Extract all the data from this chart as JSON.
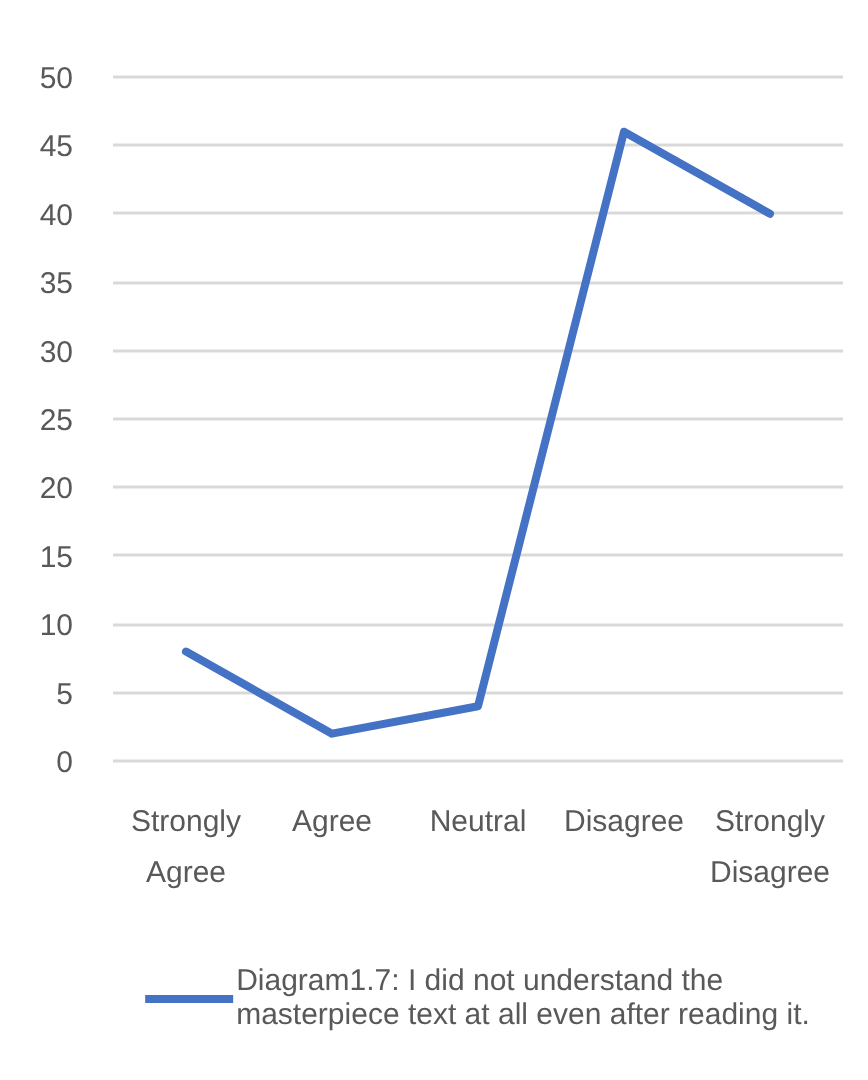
{
  "chart_data": {
    "type": "line",
    "categories": [
      "Strongly Agree",
      "Agree",
      "Neutral",
      "Disagree",
      "Strongly Disagree"
    ],
    "series": [
      {
        "name": "Diagram1.7: I did not understand the masterpiece text at all even after reading it.",
        "color": "#4472c4",
        "values": [
          8,
          2,
          4,
          46,
          40
        ]
      }
    ],
    "ylim": [
      0,
      50
    ],
    "yticks": [
      0,
      5,
      10,
      15,
      20,
      25,
      30,
      35,
      40,
      45,
      50
    ],
    "grid": "y",
    "legend": "bottom"
  }
}
